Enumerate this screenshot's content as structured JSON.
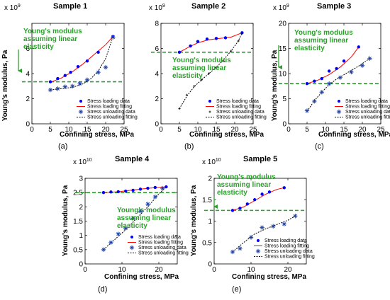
{
  "figure": {
    "colors": {
      "loading_marker": "#0000ff",
      "loading_fit": "#ff0000",
      "unloading_marker": "#1f3fa0",
      "unloading_fit": "#000000",
      "linear_line": "#2ca02c",
      "annotation": "#2ca02c"
    }
  },
  "chart_data": [
    {
      "type": "scatter",
      "panel": "(a)",
      "title": "Sample 1",
      "xlabel": "Confining stress, MPa",
      "ylabel": "Young's modulus, Pa",
      "multiplier": "x 10",
      "exponent": "9",
      "xlim": [
        0,
        25
      ],
      "ylim": [
        0,
        8
      ],
      "xticks": [
        0,
        5,
        10,
        15,
        20,
        25
      ],
      "yticks": [
        0,
        2,
        4,
        6
      ],
      "ytick_labels": [
        "0",
        "2",
        "4",
        "6"
      ],
      "linear_level": 3.35,
      "annotation": [
        "Young's modulus",
        "assuming linear",
        "elasticity"
      ],
      "legend": [
        "Stress loading data",
        "Stress loading fitting",
        "Stress unloading data",
        "Stress unloading fitting"
      ],
      "series": [
        {
          "name": "Stress loading data",
          "style": "dots",
          "x": [
            5,
            7,
            9,
            10.5,
            12.5,
            15,
            18,
            22
          ],
          "y": [
            3.35,
            3.6,
            3.85,
            4.1,
            4.55,
            5.0,
            5.7,
            6.95
          ]
        },
        {
          "name": "Stress loading fitting",
          "style": "solid",
          "x": [
            5,
            8,
            11,
            14,
            17,
            20,
            22
          ],
          "y": [
            3.3,
            3.65,
            4.15,
            4.8,
            5.55,
            6.3,
            6.95
          ]
        },
        {
          "name": "Stress unloading data",
          "style": "stars",
          "x": [
            5,
            7,
            9,
            11,
            13,
            15,
            18,
            20,
            22
          ],
          "y": [
            2.7,
            2.8,
            2.95,
            3.0,
            3.2,
            3.5,
            4.1,
            4.5,
            6.9
          ]
        },
        {
          "name": "Stress unloading fitting",
          "style": "dashed",
          "x": [
            5,
            8,
            11,
            14,
            16,
            18,
            20,
            22
          ],
          "y": [
            2.7,
            2.8,
            2.9,
            3.2,
            3.6,
            4.2,
            5.2,
            6.95
          ]
        }
      ]
    },
    {
      "type": "scatter",
      "panel": "(b)",
      "title": "Sample 2",
      "xlabel": "Confining stress, MPa",
      "ylabel": "",
      "multiplier": "x 10",
      "exponent": "9",
      "xlim": [
        0,
        25
      ],
      "ylim": [
        0,
        8
      ],
      "xticks": [
        0,
        5,
        10,
        15,
        20,
        25
      ],
      "yticks": [
        0,
        2,
        4,
        6,
        8
      ],
      "ytick_labels": [
        "0",
        "2",
        "4",
        "6",
        "8"
      ],
      "linear_level": 5.7,
      "annotation": [
        "Young's modulus",
        "assuming linear",
        "elasticity"
      ],
      "legend": [
        "Stress loading data",
        "Stress loading fitting",
        "Stress unloading data",
        "Stress unloading fitting"
      ],
      "series": [
        {
          "name": "Stress loading data",
          "style": "dots",
          "x": [
            5,
            8,
            10,
            12.5,
            15,
            17.5,
            22
          ],
          "y": [
            5.7,
            6.2,
            6.55,
            6.75,
            6.8,
            6.85,
            7.25
          ]
        },
        {
          "name": "Stress loading fitting",
          "style": "solid",
          "x": [
            5,
            7.5,
            10,
            13,
            16,
            19,
            22
          ],
          "y": [
            5.7,
            6.1,
            6.45,
            6.7,
            6.8,
            6.9,
            7.25
          ]
        },
        {
          "name": "Stress unloading data",
          "style": "plus",
          "x": [
            5,
            7,
            9,
            11,
            13,
            15,
            17,
            19,
            21,
            22
          ],
          "y": [
            1.2,
            2.3,
            3.0,
            3.5,
            4.0,
            4.5,
            5.0,
            5.8,
            6.6,
            7.2
          ]
        },
        {
          "name": "Stress unloading fitting",
          "style": "dashed",
          "x": [
            5,
            7,
            9,
            11,
            13,
            15,
            17,
            19,
            21,
            22
          ],
          "y": [
            1.2,
            2.2,
            2.95,
            3.5,
            4.0,
            4.5,
            5.1,
            5.8,
            6.6,
            7.25
          ]
        }
      ]
    },
    {
      "type": "scatter",
      "panel": "(c)",
      "title": "Sample 3",
      "xlabel": "Confining stress, MPa",
      "ylabel": "Young's modulus, Pa",
      "multiplier": "x 10",
      "exponent": "9",
      "xlim": [
        0,
        25
      ],
      "ylim": [
        0,
        20
      ],
      "xticks": [
        0,
        5,
        10,
        15,
        20,
        25
      ],
      "yticks": [
        0,
        5,
        10,
        15,
        20
      ],
      "ytick_labels": [
        "0",
        "5",
        "10",
        "15",
        "20"
      ],
      "linear_level": 8.0,
      "annotation": [
        "Young's modulus",
        "assuming linear",
        "elasticity"
      ],
      "legend": [
        "Stress loading data",
        "Stress loading fitting",
        "Stress unloading data",
        "Stress unloading fitting"
      ],
      "series": [
        {
          "name": "Stress loading data",
          "style": "dots",
          "x": [
            5,
            7,
            9,
            11,
            13,
            15,
            19
          ],
          "y": [
            8.0,
            8.5,
            9.0,
            10.5,
            11.0,
            12.5,
            15.3
          ]
        },
        {
          "name": "Stress loading fitting",
          "style": "solid",
          "x": [
            5,
            8,
            11,
            14,
            17,
            19
          ],
          "y": [
            8.0,
            8.7,
            9.8,
            11.3,
            13.3,
            15.3
          ]
        },
        {
          "name": "Stress unloading data",
          "style": "stars",
          "x": [
            5,
            7,
            9,
            11,
            14,
            17,
            20,
            22
          ],
          "y": [
            2.6,
            4.5,
            6.3,
            8.0,
            9.2,
            10.3,
            11.6,
            13.0
          ]
        },
        {
          "name": "Stress unloading fitting",
          "style": "dashed",
          "x": [
            5,
            7,
            9,
            11,
            13,
            16,
            19,
            22
          ],
          "y": [
            2.5,
            4.6,
            6.3,
            7.8,
            8.9,
            10.2,
            11.5,
            13.0
          ]
        }
      ]
    },
    {
      "type": "scatter",
      "panel": "(d)",
      "title": "Sample 4",
      "xlabel": "Confining stress, MPa",
      "ylabel": "Young's modulus, Pa",
      "multiplier": "x 10",
      "exponent": "10",
      "xlim": [
        0,
        25
      ],
      "ylim": [
        0,
        3
      ],
      "xticks": [
        0,
        10,
        20
      ],
      "yticks": [
        0,
        0.5,
        1,
        1.5,
        2,
        2.5,
        3
      ],
      "ytick_labels": [
        "0",
        "0.5",
        "1",
        "1.5",
        "2",
        "2.5",
        "3"
      ],
      "linear_level": 2.5,
      "annotation": [
        "Young's modulus",
        "assuming linear",
        "elasticity"
      ],
      "legend": [
        "Stress loading data",
        "Stress loading fitting",
        "Stress unloading data",
        "Stress unloading fitting"
      ],
      "series": [
        {
          "name": "Stress loading data",
          "style": "dots",
          "x": [
            5,
            7,
            9,
            11,
            13,
            15,
            17,
            19,
            22
          ],
          "y": [
            2.5,
            2.52,
            2.53,
            2.55,
            2.58,
            2.62,
            2.65,
            2.68,
            2.7
          ]
        },
        {
          "name": "Stress loading fitting",
          "style": "solid",
          "x": [
            5,
            9,
            13,
            17,
            22
          ],
          "y": [
            2.5,
            2.53,
            2.59,
            2.65,
            2.7
          ]
        },
        {
          "name": "Stress unloading data",
          "style": "stars",
          "x": [
            5,
            7,
            9,
            11,
            13,
            15,
            17,
            19,
            21
          ],
          "y": [
            0.5,
            0.75,
            1.05,
            1.25,
            1.6,
            1.85,
            2.1,
            2.35,
            2.65
          ]
        },
        {
          "name": "Stress unloading fitting",
          "style": "dashed",
          "x": [
            5,
            8,
            11,
            14,
            17,
            20,
            22
          ],
          "y": [
            0.5,
            0.85,
            1.2,
            1.6,
            2.0,
            2.45,
            2.7
          ]
        }
      ]
    },
    {
      "type": "scatter",
      "panel": "(e)",
      "title": "Sample 5",
      "xlabel": "Confining stress, MPa",
      "ylabel": "Young's modulus, Pa",
      "multiplier": "x 10",
      "exponent": "10",
      "xlim": [
        0,
        25
      ],
      "ylim": [
        0,
        2
      ],
      "xticks": [
        0,
        10,
        20
      ],
      "yticks": [
        0,
        0.5,
        1,
        1.5,
        2
      ],
      "ytick_labels": [
        "0",
        "0.5",
        "1",
        "1.5",
        "2"
      ],
      "linear_level": 1.25,
      "annotation": [
        "Young's modulus",
        "assuming linear",
        "elasticity"
      ],
      "legend": [
        "Stress loading data",
        "Stress loading fitting",
        "Stress unloading data",
        "Stress unloading fitting"
      ],
      "series": [
        {
          "name": "Stress loading data",
          "style": "dots",
          "x": [
            5,
            7,
            9,
            11,
            13,
            15,
            19
          ],
          "y": [
            1.25,
            1.3,
            1.4,
            1.5,
            1.63,
            1.68,
            1.78
          ]
        },
        {
          "name": "Stress loading fitting",
          "style": "solid",
          "x": [
            5,
            8,
            11,
            14,
            17,
            19
          ],
          "y": [
            1.25,
            1.33,
            1.48,
            1.63,
            1.74,
            1.78
          ]
        },
        {
          "name": "Stress unloading data",
          "style": "stars",
          "x": [
            5,
            7,
            10,
            13,
            16,
            19,
            22
          ],
          "y": [
            0.28,
            0.36,
            0.62,
            0.85,
            0.88,
            0.93,
            1.12
          ]
        },
        {
          "name": "Stress unloading fitting",
          "style": "dashed",
          "x": [
            5,
            8,
            11,
            14,
            17,
            20,
            22
          ],
          "y": [
            0.28,
            0.5,
            0.7,
            0.82,
            0.92,
            1.02,
            1.12
          ]
        }
      ]
    }
  ]
}
